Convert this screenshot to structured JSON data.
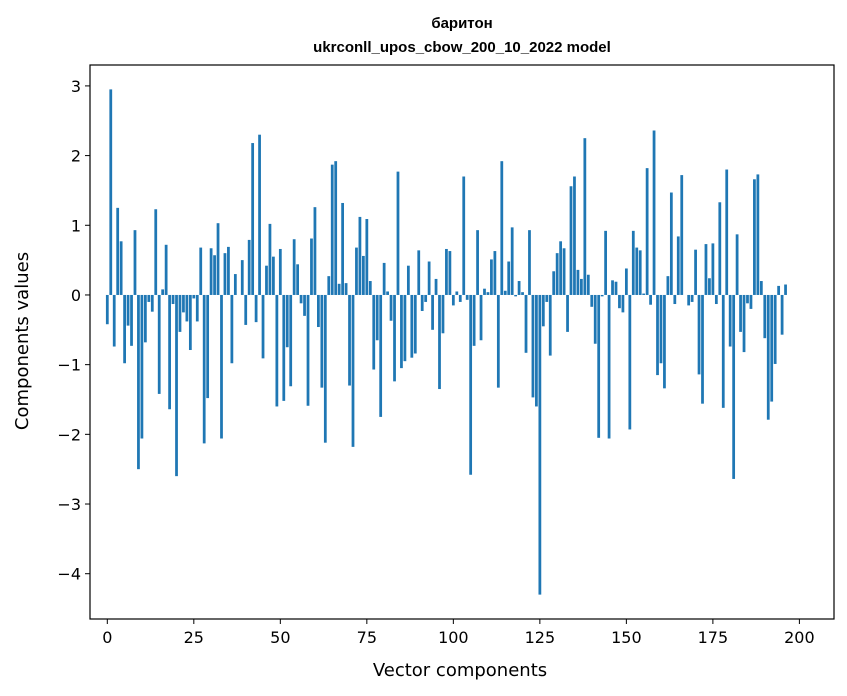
{
  "chart_data": {
    "type": "bar",
    "title": "баритон",
    "subtitle": "ukrconll_upos_cbow_200_10_2022 model",
    "xlabel": "Vector components",
    "ylabel": "Components values",
    "xlim": [
      -5,
      210
    ],
    "ylim": [
      -4.65,
      3.3
    ],
    "xticks": [
      0,
      25,
      50,
      75,
      100,
      125,
      150,
      175,
      200
    ],
    "yticks": [
      3,
      2,
      1,
      0,
      -1,
      -2,
      -3,
      -4
    ],
    "xtick_labels": [
      "0",
      "25",
      "50",
      "75",
      "100",
      "125",
      "150",
      "175",
      "200"
    ],
    "ytick_labels": [
      "3",
      "2",
      "1",
      "0",
      "−1",
      "−2",
      "−3",
      "−4"
    ],
    "grid": false,
    "bar_color": "#1f77b4",
    "values": [
      -0.42,
      2.95,
      -0.74,
      1.25,
      0.77,
      -0.98,
      -0.44,
      -0.73,
      0.93,
      -2.5,
      -2.06,
      -0.68,
      -0.1,
      -0.24,
      1.23,
      -1.42,
      0.08,
      0.72,
      -1.64,
      -0.13,
      -2.6,
      -0.53,
      -0.25,
      -0.38,
      -0.79,
      -0.05,
      -0.38,
      0.68,
      -2.13,
      -1.48,
      0.67,
      0.57,
      1.03,
      -2.06,
      0.6,
      0.69,
      -0.98,
      0.3,
      0.0,
      0.5,
      -0.43,
      0.79,
      2.18,
      -0.39,
      2.3,
      -0.91,
      0.42,
      1.02,
      0.55,
      -1.6,
      0.66,
      -1.52,
      -0.75,
      -1.31,
      0.8,
      0.44,
      -0.12,
      -0.3,
      -1.59,
      0.81,
      1.26,
      -0.46,
      -1.33,
      -2.12,
      0.27,
      1.87,
      1.92,
      0.16,
      1.32,
      0.17,
      -1.3,
      -2.18,
      0.68,
      1.12,
      0.56,
      1.09,
      0.2,
      -1.07,
      -0.65,
      -1.75,
      0.46,
      0.05,
      -0.37,
      -1.24,
      1.77,
      -1.05,
      -0.95,
      0.42,
      -0.9,
      -0.84,
      0.64,
      -0.23,
      -0.1,
      0.48,
      -0.5,
      0.23,
      -1.35,
      -0.55,
      0.66,
      0.63,
      -0.15,
      0.05,
      -0.1,
      1.7,
      -0.07,
      -2.58,
      -0.73,
      0.93,
      -0.65,
      0.09,
      0.04,
      0.51,
      0.63,
      -1.33,
      1.92,
      0.06,
      0.48,
      0.97,
      -0.02,
      0.2,
      0.04,
      -0.83,
      0.93,
      -1.47,
      -1.6,
      -4.3,
      -0.45,
      -0.1,
      -0.87,
      0.34,
      0.6,
      0.77,
      0.67,
      -0.53,
      1.56,
      1.7,
      0.36,
      0.23,
      2.25,
      0.29,
      -0.17,
      -0.7,
      -2.05,
      -0.02,
      0.92,
      -2.06,
      0.21,
      0.19,
      -0.19,
      -0.25,
      0.38,
      -1.93,
      0.92,
      0.68,
      0.64,
      0.02,
      1.82,
      -0.14,
      2.36,
      -1.15,
      -0.98,
      -1.34,
      0.27,
      1.47,
      -0.13,
      0.84,
      1.72,
      0.0,
      -0.15,
      -0.1,
      0.65,
      -1.14,
      -1.56,
      0.73,
      0.24,
      0.74,
      -0.13,
      1.33,
      -1.62,
      1.8,
      -0.74,
      -2.64,
      0.87,
      -0.53,
      -0.82,
      -0.12,
      -0.2,
      1.66,
      1.73,
      0.2,
      -0.62,
      -1.79,
      -1.53,
      -0.99,
      0.13,
      -0.57,
      0.15
    ]
  }
}
